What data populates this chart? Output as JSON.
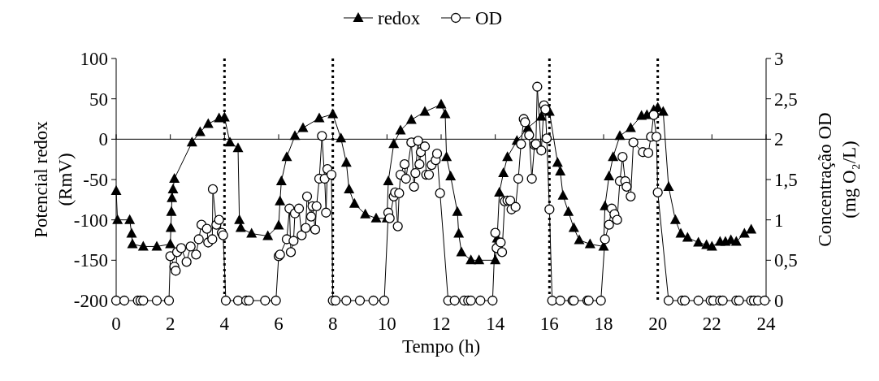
{
  "chart_data": {
    "type": "line",
    "xlabel": "Tempo (h)",
    "ylabel": "Potencial redox (RmV)",
    "y2label": "Concentração OD (mg O₂/L)",
    "xlim": [
      0,
      24
    ],
    "xticks": [
      0,
      2,
      4,
      6,
      8,
      10,
      12,
      14,
      16,
      18,
      20,
      22,
      24
    ],
    "ylim": [
      -200,
      100
    ],
    "yticks": [
      -200,
      -150,
      -100,
      -50,
      0,
      50,
      100
    ],
    "y2lim": [
      0,
      3
    ],
    "y2ticks": [
      0,
      {
        "value": 0.5,
        "label": "0,5"
      },
      1,
      {
        "value": 1.5,
        "label": "1,5"
      },
      2,
      {
        "value": 2.5,
        "label": "2,5"
      },
      3
    ],
    "grid": false,
    "legend": "top",
    "line_style": "solid",
    "ref_lines": [
      {
        "axis": "x",
        "value": 4,
        "line_style": "dotted",
        "color": "#000000"
      },
      {
        "axis": "x",
        "value": 8,
        "line_style": "dotted",
        "color": "#000000"
      },
      {
        "axis": "x",
        "value": 16,
        "line_style": "dotted",
        "color": "#000000"
      },
      {
        "axis": "x",
        "value": 20,
        "line_style": "dotted",
        "color": "#000000"
      }
    ],
    "series": [
      {
        "name": "redox",
        "color": "#000000",
        "marker": "triangle",
        "x": [
          0,
          0.05,
          0.5,
          0.57,
          0.6,
          1.0,
          1.5,
          2.0,
          2.02,
          2.04,
          2.06,
          2.1,
          2.15,
          2.8,
          3.1,
          3.4,
          3.8,
          4.0,
          4.2,
          4.5,
          4.55,
          4.6,
          5.0,
          5.6,
          6.0,
          6.05,
          6.1,
          6.3,
          6.6,
          6.9,
          7.5,
          8.0,
          8.3,
          8.5,
          8.6,
          8.8,
          9.2,
          9.6,
          10.0,
          10.05,
          10.25,
          10.5,
          10.9,
          11.4,
          12.0,
          12.15,
          12.2,
          12.35,
          12.6,
          12.65,
          12.75,
          13.1,
          13.4,
          14.0,
          14.07,
          14.15,
          14.3,
          14.45,
          14.8,
          15.2,
          15.7,
          16.0,
          16.3,
          16.4,
          16.5,
          16.7,
          16.9,
          17.1,
          17.5,
          18.0,
          18.05,
          18.2,
          18.35,
          18.6,
          19.0,
          19.4,
          19.6,
          19.85,
          20.0,
          20.2,
          20.4,
          20.65,
          20.85,
          21.1,
          21.5,
          21.8,
          22.0,
          22.3,
          22.5,
          22.7,
          22.9,
          23.2,
          23.45
        ],
        "values": [
          -64,
          -100,
          -100,
          -117,
          -130,
          -133,
          -133,
          -130,
          -110,
          -90,
          -73,
          -62,
          -49,
          -4,
          9,
          19,
          26,
          27,
          -4,
          -11,
          -100,
          -110,
          -117,
          -120,
          -107,
          -77,
          -52,
          -22,
          4,
          14,
          26,
          31,
          1,
          -29,
          -62,
          -80,
          -93,
          -98,
          -98,
          -52,
          -6,
          11,
          24,
          34,
          43,
          31,
          -22,
          -46,
          -90,
          -117,
          -140,
          -150,
          -150,
          -150,
          -123,
          -66,
          -42,
          -22,
          -2,
          14,
          28,
          34,
          -29,
          -40,
          -70,
          -90,
          -110,
          -125,
          -130,
          -133,
          -83,
          -46,
          -22,
          4,
          14,
          29,
          30,
          36,
          39,
          34,
          -59,
          -100,
          -117,
          -122,
          -128,
          -131,
          -133,
          -127,
          -127,
          -125,
          -127,
          -117,
          -112
        ]
      },
      {
        "name": "OD",
        "color": "#000000",
        "marker": "circle",
        "axis": "y2",
        "x": [
          0,
          0.3,
          0.8,
          0.9,
          1.0,
          1.5,
          1.95,
          2.0,
          2.15,
          2.2,
          2.25,
          2.4,
          2.6,
          2.75,
          2.95,
          3.05,
          3.15,
          3.35,
          3.4,
          3.55,
          3.57,
          3.7,
          3.8,
          3.9,
          3.95,
          4.05,
          4.5,
          4.8,
          4.9,
          5.5,
          5.9,
          6.0,
          6.05,
          6.3,
          6.4,
          6.45,
          6.55,
          6.6,
          6.75,
          6.85,
          7.0,
          7.05,
          7.2,
          7.25,
          7.35,
          7.4,
          7.5,
          7.6,
          7.7,
          7.75,
          7.8,
          7.95,
          8.0,
          8.1,
          8.5,
          9.0,
          9.5,
          9.9,
          10.05,
          10.1,
          10.25,
          10.3,
          10.4,
          10.45,
          10.5,
          10.65,
          10.7,
          10.9,
          11.0,
          11.05,
          11.15,
          11.2,
          11.25,
          11.4,
          11.45,
          11.55,
          11.65,
          11.8,
          11.85,
          11.96,
          12.26,
          12.5,
          12.85,
          13.0,
          13.1,
          13.45,
          13.9,
          14.0,
          14.05,
          14.2,
          14.25,
          14.35,
          14.45,
          14.55,
          14.6,
          14.75,
          14.85,
          14.95,
          15.05,
          15.1,
          15.25,
          15.35,
          15.45,
          15.5,
          15.55,
          15.7,
          15.8,
          15.85,
          15.9,
          16.0,
          16.1,
          16.4,
          16.85,
          16.9,
          17.4,
          17.45,
          17.9,
          18.05,
          18.2,
          18.3,
          18.4,
          18.5,
          18.6,
          18.7,
          18.8,
          18.85,
          19.0,
          19.1,
          19.45,
          19.65,
          19.75,
          19.85,
          19.95,
          20.0,
          20.4,
          20.9,
          21.0,
          21.5,
          21.95,
          22.05,
          22.3,
          22.4,
          22.9,
          23.0,
          23.45,
          23.55,
          23.7,
          23.95
        ],
        "values": [
          0,
          0,
          0,
          0,
          0,
          0,
          0,
          0.55,
          0.42,
          0.37,
          0.6,
          0.65,
          0.48,
          0.67,
          0.57,
          0.76,
          0.94,
          0.89,
          0.72,
          0.76,
          1.38,
          0.94,
          1.0,
          0.84,
          0.81,
          0,
          0,
          0,
          0,
          0,
          0,
          0.55,
          0.57,
          0.76,
          1.14,
          0.6,
          0.74,
          1.08,
          1.14,
          0.81,
          0.9,
          1.29,
          1.04,
          1.17,
          0.88,
          1.17,
          1.51,
          2.04,
          1.51,
          1.09,
          1.63,
          1.56,
          0,
          0,
          0,
          0,
          0,
          0,
          1.09,
          1.02,
          1.29,
          1.34,
          0.92,
          1.33,
          1.56,
          1.69,
          1.51,
          1.96,
          1.41,
          1.58,
          1.98,
          1.69,
          1.84,
          1.91,
          1.56,
          1.56,
          1.68,
          1.74,
          1.82,
          1.33,
          0,
          0,
          0,
          0,
          0,
          0,
          0,
          0.84,
          0.65,
          0.72,
          0.6,
          1.23,
          1.24,
          1.24,
          1.13,
          1.16,
          1.51,
          1.94,
          2.25,
          2.21,
          2.05,
          1.51,
          1.93,
          1.94,
          2.65,
          1.86,
          2.42,
          2.37,
          2.01,
          1.13,
          0,
          0,
          0,
          0,
          0,
          0,
          0,
          0.76,
          0.94,
          1.14,
          1.07,
          1.0,
          1.48,
          1.78,
          1.48,
          1.41,
          1.29,
          1.96,
          1.84,
          1.83,
          2.03,
          2.3,
          2.03,
          1.34,
          0,
          0,
          0,
          0,
          0,
          0,
          0,
          0,
          0,
          0,
          0,
          0,
          0,
          0
        ]
      }
    ]
  }
}
